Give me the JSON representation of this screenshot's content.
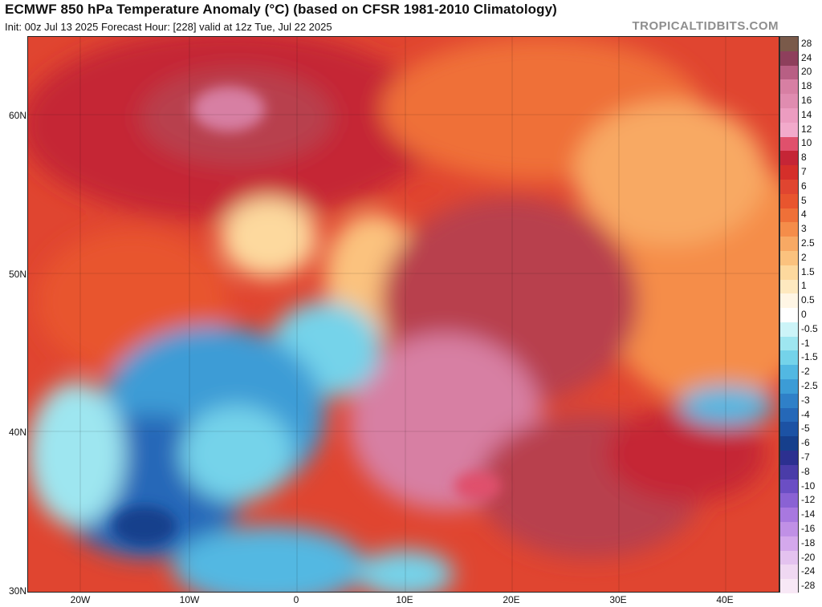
{
  "header": {
    "title": "ECMWF 850 hPa Temperature Anomaly (°C) (based on CFSR 1981-2010 Climatology)",
    "subtitle": "Init: 00z Jul 13 2025   Forecast Hour: [228]   valid at 12z Tue, Jul 22 2025",
    "brand": "TROPICALTIDBITS.COM"
  },
  "axes": {
    "lat_labels": [
      "60N",
      "50N",
      "40N",
      "30N"
    ],
    "lon_labels": [
      "20W",
      "10W",
      "0",
      "10E",
      "20E",
      "30E",
      "40E"
    ]
  },
  "legend": {
    "levels": [
      "28",
      "24",
      "20",
      "18",
      "16",
      "14",
      "12",
      "10",
      "8",
      "7",
      "6",
      "5",
      "4",
      "3",
      "2.5",
      "2",
      "1.5",
      "1",
      "0.5",
      "0",
      "-0.5",
      "-1",
      "-1.5",
      "-2",
      "-2.5",
      "-3",
      "-4",
      "-5",
      "-6",
      "-7",
      "-8",
      "-10",
      "-12",
      "-14",
      "-16",
      "-18",
      "-20",
      "-24",
      "-28"
    ],
    "colors": [
      "#7a5a4a",
      "#8e3f5c",
      "#b85f84",
      "#d77fa3",
      "#e08cb0",
      "#ec9cc0",
      "#f2aacb",
      "#e0506c",
      "#c52536",
      "#d52f2a",
      "#e04530",
      "#e8552e",
      "#ef7038",
      "#f58d4a",
      "#f8a964",
      "#fbc27e",
      "#fdd99e",
      "#fee9bf",
      "#fff6e5",
      "#ffffff",
      "#ccf4f8",
      "#9ee6f0",
      "#74d3ea",
      "#52b8e2",
      "#3c9cd6",
      "#2f80c8",
      "#2568b8",
      "#1c52a4",
      "#163f8c",
      "#2c3090",
      "#4a3ca8",
      "#6b4ec4",
      "#8a62d4",
      "#a878e0",
      "#c090e6",
      "#d4a8ec",
      "#e4c2ef",
      "#f0d8f2",
      "#f8e8f6"
    ]
  }
}
